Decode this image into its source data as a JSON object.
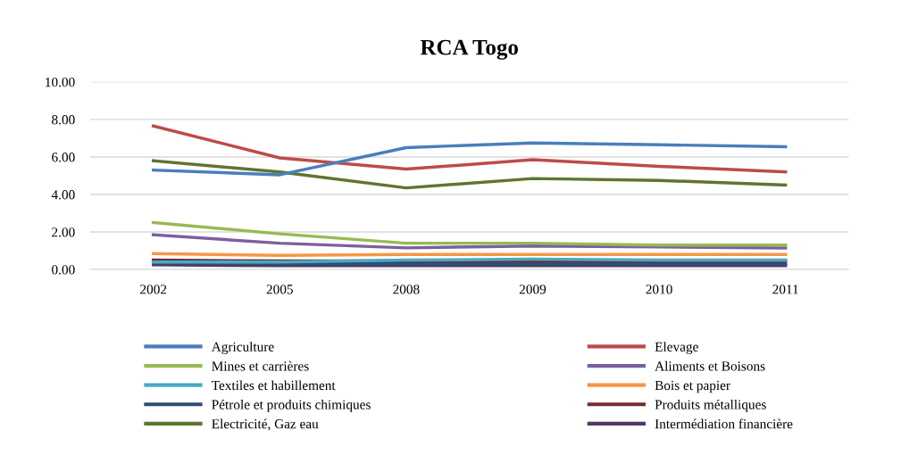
{
  "chart_data": {
    "type": "line",
    "title": "RCA Togo",
    "categories": [
      "2002",
      "2005",
      "2008",
      "2009",
      "2010",
      "2011"
    ],
    "ylim": [
      0,
      10
    ],
    "yticks": [
      {
        "value": 0,
        "label": "0.00"
      },
      {
        "value": 2,
        "label": "2.00"
      },
      {
        "value": 4,
        "label": "4.00"
      },
      {
        "value": 6,
        "label": "6.00"
      },
      {
        "value": 8,
        "label": "8.00"
      },
      {
        "value": 10,
        "label": "10.00"
      }
    ],
    "grid": "y",
    "legend": "bottom",
    "marker": "none",
    "line_style": "solid",
    "series": [
      {
        "name": "Agriculture",
        "color": "#4a7ebb",
        "values": [
          5.3,
          5.05,
          6.5,
          6.75,
          6.65,
          6.55
        ]
      },
      {
        "name": "Elevage",
        "color": "#be4b48",
        "values": [
          7.65,
          5.95,
          5.35,
          5.85,
          5.5,
          5.2
        ]
      },
      {
        "name": "Mines et carrières",
        "color": "#98b954",
        "values": [
          2.5,
          1.9,
          1.4,
          1.4,
          1.3,
          1.3
        ]
      },
      {
        "name": "Aliments et Boisons",
        "color": "#7d5fa0",
        "values": [
          1.85,
          1.4,
          1.15,
          1.25,
          1.2,
          1.15
        ]
      },
      {
        "name": "Textiles et habillement",
        "color": "#46aac5",
        "values": [
          0.4,
          0.4,
          0.5,
          0.55,
          0.5,
          0.5
        ]
      },
      {
        "name": "Bois et papier",
        "color": "#f79646",
        "values": [
          0.85,
          0.75,
          0.8,
          0.8,
          0.8,
          0.8
        ]
      },
      {
        "name": "Pétrole et produits chimiques",
        "color": "#2c4d75",
        "values": [
          0.35,
          0.3,
          0.3,
          0.3,
          0.3,
          0.3
        ]
      },
      {
        "name": "Produits métalliques",
        "color": "#772c2a",
        "values": [
          0.5,
          0.45,
          0.45,
          0.45,
          0.45,
          0.45
        ]
      },
      {
        "name": "Electricité, Gaz eau",
        "color": "#5f7530",
        "values": [
          5.8,
          5.2,
          4.35,
          4.85,
          4.75,
          4.5
        ]
      },
      {
        "name": "Intermédiation financière",
        "color": "#4d3b62",
        "values": [
          0.25,
          0.2,
          0.2,
          0.2,
          0.2,
          0.2
        ]
      }
    ]
  }
}
